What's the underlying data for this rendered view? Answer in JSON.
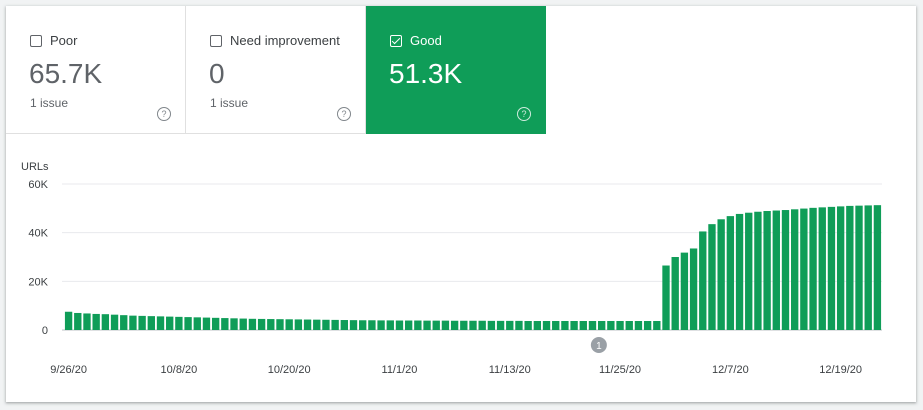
{
  "tiles": [
    {
      "label": "Poor",
      "value": "65.7K",
      "sub": "1 issue",
      "checked": false
    },
    {
      "label": "Need improvement",
      "value": "0",
      "sub": "1 issue",
      "checked": false
    },
    {
      "label": "Good",
      "value": "51.3K",
      "sub": "",
      "checked": true
    }
  ],
  "help_glyph": "?",
  "colors": {
    "good": "#0f9d58",
    "bar": "#0f9d58",
    "grid": "#e8eaed",
    "text": "#5f6368"
  },
  "annotation": {
    "label": "1",
    "x_index": 59
  },
  "chart_data": {
    "type": "bar",
    "ylabel": "URLs",
    "ylim": [
      0,
      60000
    ],
    "yticks": [
      {
        "value": 0,
        "label": "0"
      },
      {
        "value": 20000,
        "label": "20K"
      },
      {
        "value": 40000,
        "label": "40K"
      },
      {
        "value": 60000,
        "label": "60K"
      }
    ],
    "xtick_labels": [
      "9/26/20",
      "10/8/20",
      "10/20/20",
      "11/1/20",
      "11/13/20",
      "11/25/20",
      "12/7/20",
      "12/19/20"
    ],
    "xtick_indices": [
      0,
      12,
      24,
      36,
      48,
      60,
      72,
      84
    ],
    "series": [
      {
        "color": "#0f9d58",
        "values": [
          7500,
          7000,
          6800,
          6600,
          6500,
          6300,
          6100,
          5900,
          5800,
          5700,
          5600,
          5500,
          5400,
          5300,
          5200,
          5100,
          5000,
          4900,
          4800,
          4700,
          4600,
          4550,
          4500,
          4450,
          4400,
          4350,
          4300,
          4250,
          4200,
          4150,
          4100,
          4050,
          4000,
          4000,
          3950,
          3950,
          3900,
          3900,
          3900,
          3850,
          3850,
          3850,
          3800,
          3800,
          3800,
          3800,
          3750,
          3750,
          3750,
          3750,
          3700,
          3700,
          3700,
          3700,
          3700,
          3700,
          3700,
          3700,
          3700,
          3700,
          3700,
          3700,
          3700,
          3700,
          3700,
          26500,
          30000,
          31800,
          33500,
          40500,
          43500,
          45500,
          46800,
          47700,
          48200,
          48600,
          48900,
          49100,
          49300,
          49600,
          49900,
          50200,
          50400,
          50600,
          50800,
          51000,
          51100,
          51200,
          51300
        ]
      }
    ]
  }
}
